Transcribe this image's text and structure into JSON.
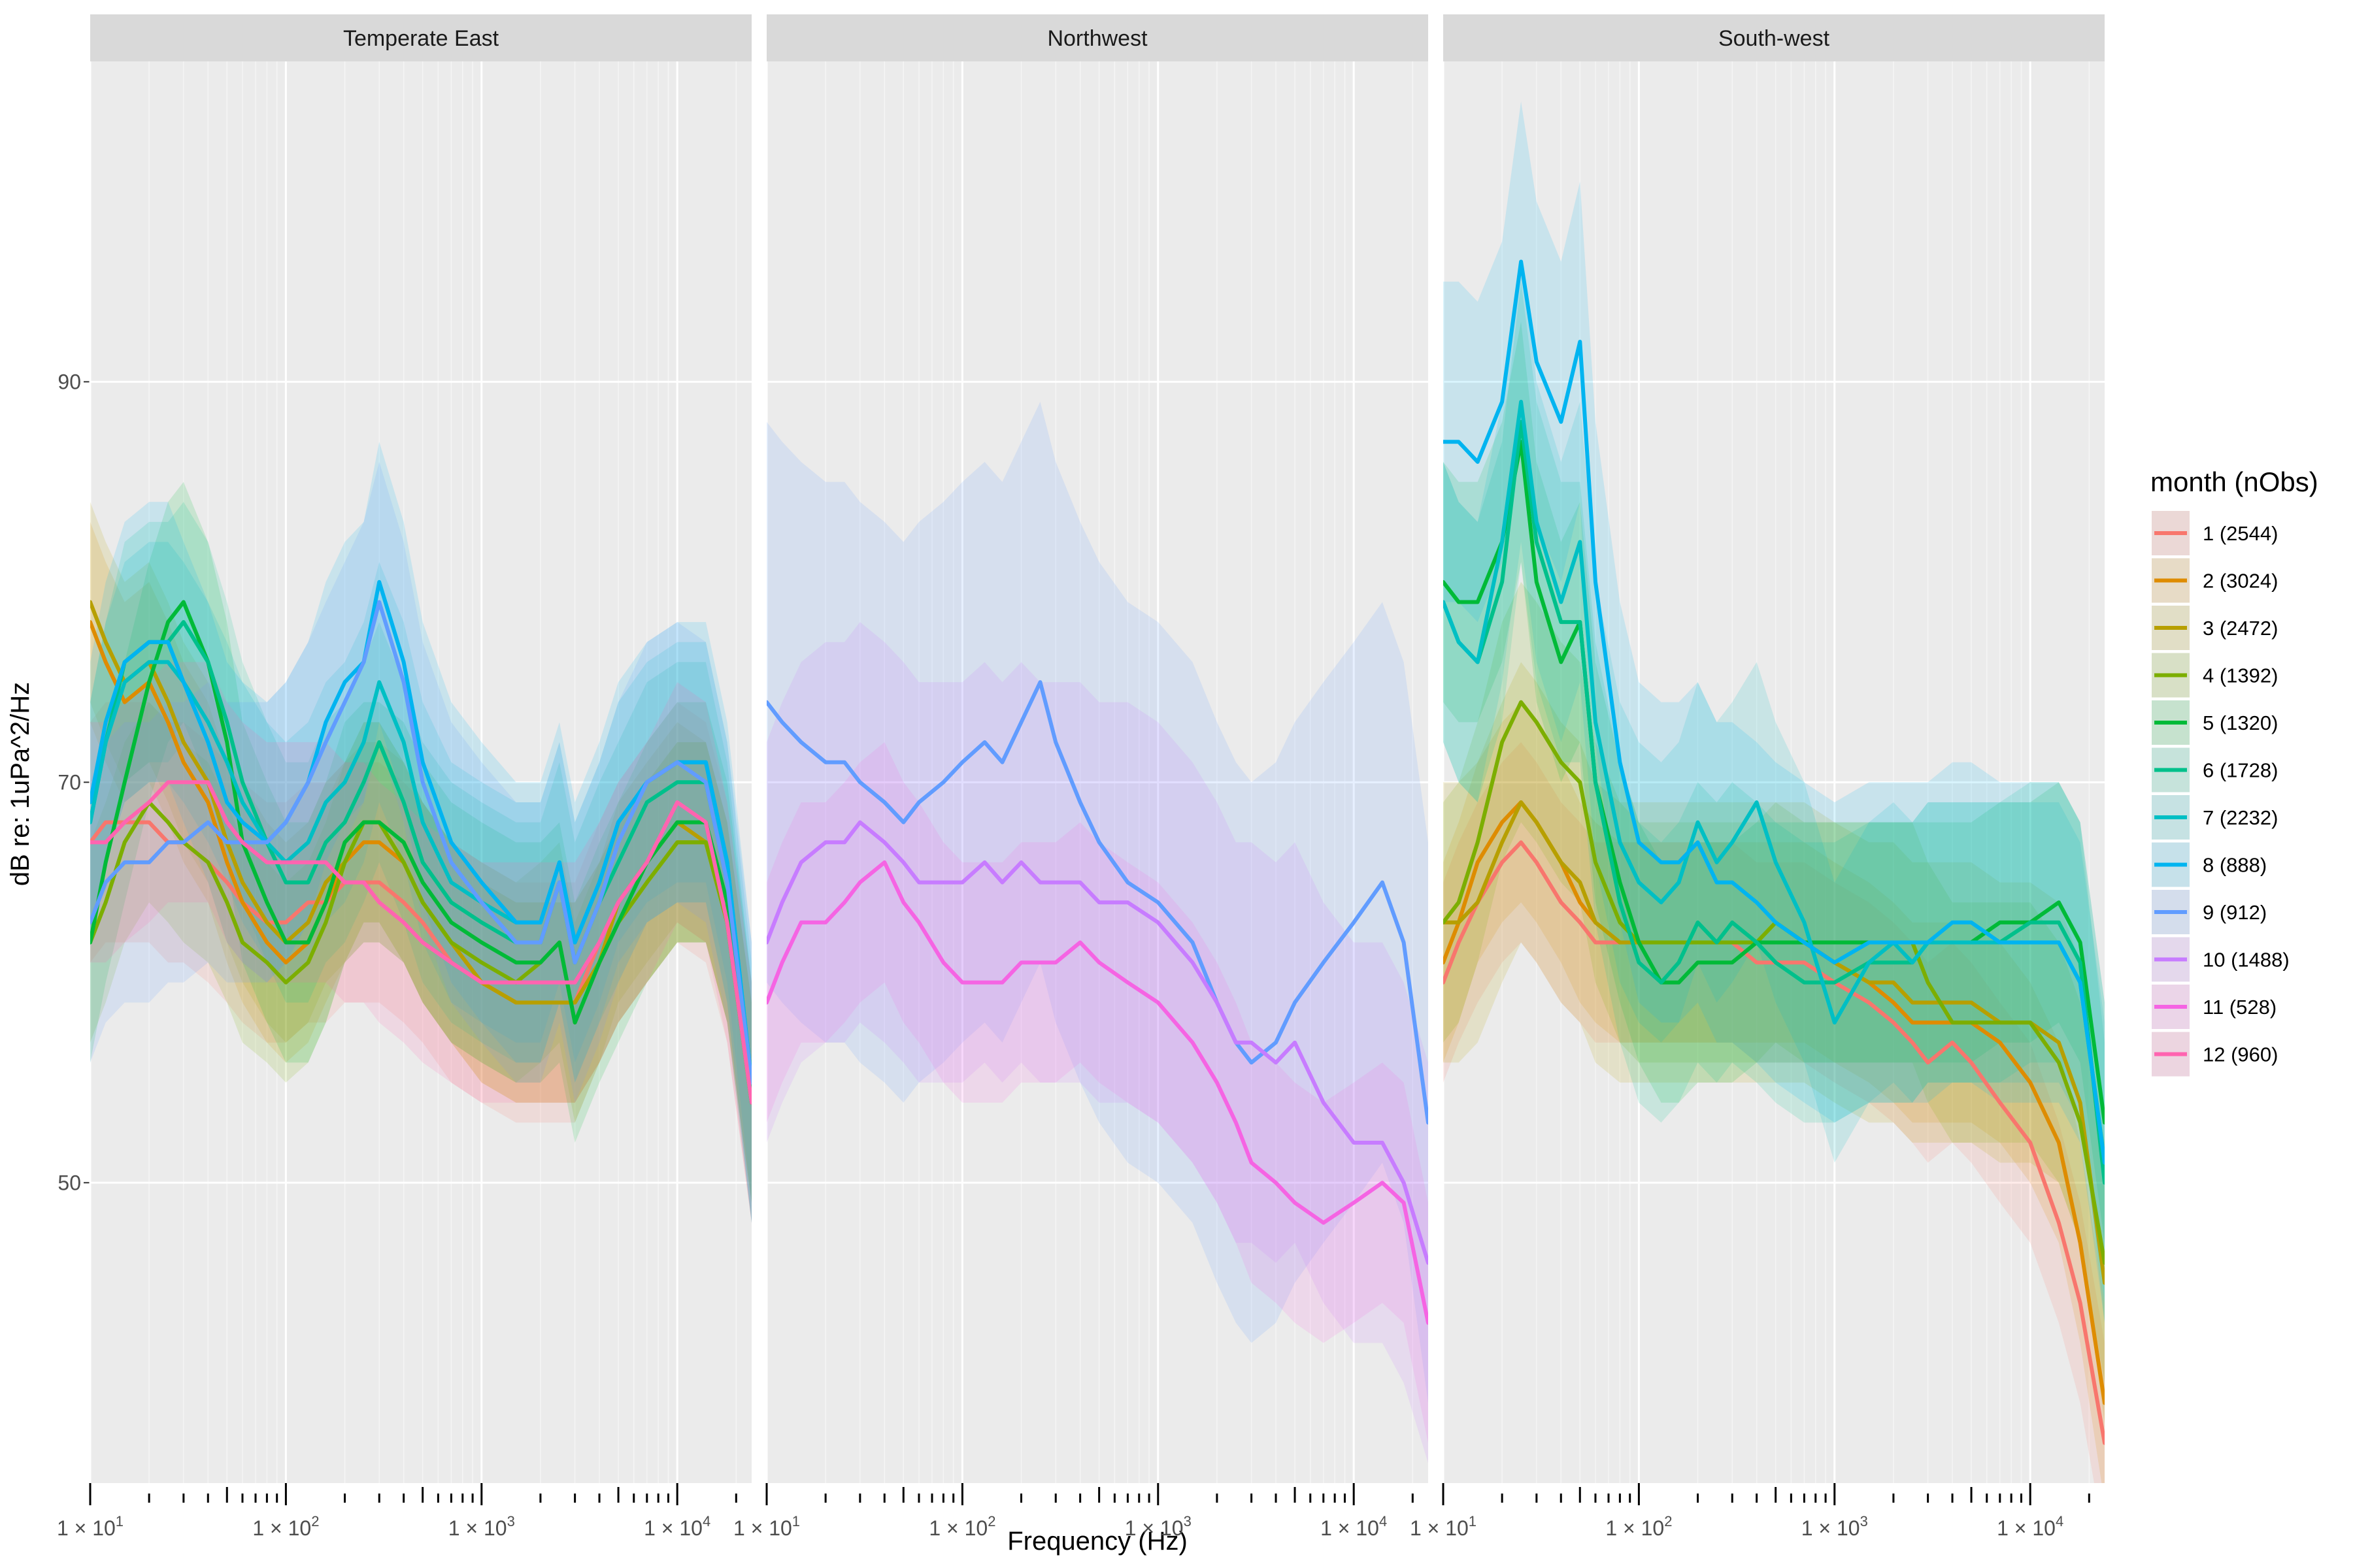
{
  "chart_data": {
    "type": "line",
    "xlabel": "Frequency (Hz)",
    "ylabel": "dB re: 1uPa^2/Hz",
    "x_scale": "log10",
    "xlim": [
      10,
      24000
    ],
    "ylim": [
      35,
      106
    ],
    "y_ticks": [
      50,
      70,
      90
    ],
    "x_tick_labels": [
      {
        "value": 10,
        "base": "1 × 10",
        "exp": "1"
      },
      {
        "value": 100,
        "base": "1 × 10",
        "exp": "2"
      },
      {
        "value": 1000,
        "base": "1 × 10",
        "exp": "3"
      },
      {
        "value": 10000,
        "base": "1 × 10",
        "exp": "4"
      }
    ],
    "grid": true,
    "legend": {
      "title": "month (nObs)",
      "position": "right",
      "entries": [
        {
          "label": "1 (2544)",
          "color": "#F8766D"
        },
        {
          "label": "2 (3024)",
          "color": "#DE8C00"
        },
        {
          "label": "3 (2472)",
          "color": "#B79F00"
        },
        {
          "label": "4 (1392)",
          "color": "#7CAE00"
        },
        {
          "label": "5 (1320)",
          "color": "#00BA38"
        },
        {
          "label": "6 (1728)",
          "color": "#00C08B"
        },
        {
          "label": "7 (2232)",
          "color": "#00BFC4"
        },
        {
          "label": "8 (888)",
          "color": "#00B4F0"
        },
        {
          "label": "9 (912)",
          "color": "#619CFF"
        },
        {
          "label": "10 (1488)",
          "color": "#C77CFF"
        },
        {
          "label": "11 (528)",
          "color": "#F564E3"
        },
        {
          "label": "12 (960)",
          "color": "#FF64B0"
        }
      ]
    },
    "x": [
      10,
      12,
      15,
      20,
      25,
      30,
      40,
      50,
      60,
      80,
      100,
      130,
      160,
      200,
      250,
      300,
      400,
      500,
      700,
      1000,
      1500,
      2000,
      2500,
      3000,
      4000,
      5000,
      7000,
      10000,
      14000,
      18000,
      24000
    ],
    "panels": [
      {
        "title": "Temperate East",
        "series": [
          {
            "month": 1,
            "values": [
              67,
              68,
              68,
              68,
              67,
              67,
              66,
              65,
              64,
              63,
              63,
              64,
              64,
              65,
              65,
              65,
              64,
              63,
              61,
              60,
              59,
              59,
              59,
              59,
              62,
              64,
              66,
              68,
              67,
              63,
              54
            ],
            "band": 6
          },
          {
            "month": 2,
            "values": [
              78,
              76,
              74,
              75,
              73,
              71,
              69,
              66,
              64,
              62,
              61,
              62,
              64,
              66,
              67,
              67,
              66,
              64,
              62,
              60,
              59,
              59,
              59,
              59,
              61,
              63,
              65,
              67,
              67,
              63,
              54
            ],
            "band": 5
          },
          {
            "month": 3,
            "values": [
              79,
              77,
              75,
              76,
              74,
              72,
              70,
              67,
              65,
              63,
              62,
              63,
              65,
              66,
              68,
              68,
              66,
              64,
              62,
              60,
              59,
              59,
              59,
              59,
              61,
              64,
              66,
              68,
              67,
              63,
              54
            ],
            "band": 5
          },
          {
            "month": 4,
            "values": [
              62,
              64,
              67,
              69,
              68,
              67,
              66,
              64,
              62,
              61,
              60,
              61,
              63,
              66,
              68,
              68,
              66,
              64,
              62,
              61,
              60,
              61,
              62,
              58,
              61,
              63,
              65,
              67,
              67,
              63,
              54
            ],
            "band": 5
          },
          {
            "month": 5,
            "values": [
              62,
              66,
              70,
              75,
              78,
              79,
              76,
              72,
              67,
              64,
              62,
              62,
              64,
              67,
              68,
              68,
              67,
              65,
              63,
              62,
              61,
              61,
              62,
              58,
              61,
              63,
              66,
              68,
              68,
              64,
              54
            ],
            "band": 6
          },
          {
            "month": 6,
            "values": [
              68,
              72,
              76,
              77,
              77,
              78,
              76,
              73,
              70,
              67,
              65,
              65,
              67,
              68,
              70,
              72,
              69,
              66,
              64,
              63,
              62,
              62,
              65,
              61,
              64,
              66,
              69,
              70,
              70,
              65,
              54
            ],
            "band": 6
          },
          {
            "month": 7,
            "values": [
              68,
              72,
              75,
              76,
              76,
              75,
              73,
              71,
              69,
              67,
              66,
              67,
              69,
              70,
              72,
              75,
              72,
              68,
              65,
              64,
              63,
              63,
              66,
              62,
              65,
              68,
              70,
              71,
              71,
              66,
              55
            ],
            "band": 6
          },
          {
            "month": 8,
            "values": [
              69,
              73,
              76,
              77,
              77,
              75,
              72,
              69,
              68,
              67,
              68,
              70,
              73,
              75,
              76,
              80,
              76,
              71,
              67,
              65,
              63,
              63,
              66,
              62,
              65,
              68,
              70,
              71,
              71,
              66,
              55
            ],
            "band": 7
          },
          {
            "month": 9,
            "values": [
              63,
              65,
              66,
              66,
              67,
              67,
              68,
              67,
              67,
              67,
              68,
              70,
              72,
              74,
              76,
              79,
              75,
              70,
              66,
              64,
              62,
              62,
              65,
              61,
              64,
              67,
              70,
              71,
              70,
              65,
              55
            ],
            "band": 7
          },
          {
            "month": 12,
            "values": [
              67,
              67,
              68,
              69,
              70,
              70,
              70,
              68,
              67,
              66,
              66,
              66,
              66,
              65,
              65,
              64,
              63,
              62,
              61,
              60,
              60,
              60,
              60,
              60,
              62,
              64,
              66,
              69,
              68,
              63,
              54
            ],
            "band": 6
          }
        ]
      },
      {
        "title": "Northwest",
        "series": [
          {
            "month": 9,
            "values": [
              74,
              73,
              72,
              71,
              71,
              70,
              69,
              68,
              69,
              70,
              71,
              72,
              71,
              73,
              75,
              72,
              69,
              67,
              65,
              64,
              62,
              59,
              57,
              56,
              57,
              59,
              61,
              63,
              65,
              62,
              53
            ],
            "band": 14
          },
          {
            "month": 10,
            "values": [
              62,
              64,
              66,
              67,
              67,
              68,
              67,
              66,
              65,
              65,
              65,
              66,
              65,
              66,
              65,
              65,
              65,
              64,
              64,
              63,
              61,
              59,
              57,
              57,
              56,
              57,
              54,
              52,
              52,
              50,
              46
            ],
            "band": 10
          },
          {
            "month": 11,
            "values": [
              59,
              61,
              63,
              63,
              64,
              65,
              66,
              64,
              63,
              61,
              60,
              60,
              60,
              61,
              61,
              61,
              62,
              61,
              60,
              59,
              57,
              55,
              53,
              51,
              50,
              49,
              48,
              49,
              50,
              49,
              43
            ],
            "band": 6
          }
        ]
      },
      {
        "title": "South-west",
        "series": [
          {
            "month": 1,
            "values": [
              60,
              62,
              64,
              66,
              67,
              66,
              64,
              63,
              62,
              62,
              62,
              62,
              62,
              62,
              62,
              62,
              61,
              61,
              61,
              60,
              59,
              58,
              57,
              56,
              57,
              56,
              54,
              52,
              48,
              44,
              37
            ],
            "band": 5
          },
          {
            "month": 2,
            "values": [
              61,
              63,
              66,
              68,
              69,
              68,
              66,
              64,
              63,
              62,
              62,
              62,
              62,
              62,
              62,
              62,
              62,
              62,
              62,
              61,
              60,
              59,
              58,
              58,
              58,
              58,
              57,
              55,
              52,
              47,
              39
            ],
            "band": 5
          },
          {
            "month": 3,
            "values": [
              63,
              63,
              64,
              67,
              69,
              68,
              66,
              65,
              63,
              62,
              62,
              62,
              62,
              62,
              62,
              62,
              62,
              62,
              62,
              61,
              60,
              60,
              59,
              59,
              59,
              59,
              58,
              58,
              57,
              54,
              45
            ],
            "band": 7
          },
          {
            "month": 4,
            "values": [
              63,
              64,
              67,
              72,
              74,
              73,
              71,
              70,
              66,
              63,
              62,
              62,
              62,
              62,
              62,
              62,
              62,
              63,
              62,
              62,
              62,
              62,
              62,
              60,
              58,
              58,
              58,
              58,
              56,
              53,
              46
            ],
            "band": 6
          },
          {
            "month": 5,
            "values": [
              80,
              79,
              79,
              82,
              87,
              80,
              76,
              78,
              70,
              65,
              62,
              60,
              60,
              61,
              61,
              61,
              62,
              62,
              62,
              62,
              62,
              62,
              62,
              62,
              62,
              62,
              63,
              63,
              64,
              62,
              53
            ],
            "band": 6
          },
          {
            "month": 6,
            "values": [
              79,
              77,
              76,
              80,
              88,
              82,
              78,
              78,
              70,
              64,
              61,
              60,
              61,
              63,
              62,
              63,
              62,
              61,
              60,
              60,
              61,
              61,
              61,
              62,
              62,
              62,
              62,
              63,
              63,
              61,
              50
            ],
            "band": 7
          },
          {
            "month": 7,
            "values": [
              79,
              77,
              76,
              82,
              89,
              83,
              79,
              82,
              73,
              67,
              65,
              64,
              65,
              68,
              66,
              67,
              69,
              66,
              63,
              58,
              61,
              62,
              61,
              62,
              62,
              62,
              62,
              62,
              62,
              60,
              51
            ],
            "band": 7
          },
          {
            "month": 8,
            "values": [
              87,
              87,
              86,
              89,
              96,
              91,
              88,
              92,
              80,
              71,
              67,
              66,
              66,
              67,
              65,
              65,
              64,
              63,
              62,
              61,
              62,
              62,
              62,
              62,
              63,
              63,
              62,
              62,
              62,
              60,
              51
            ],
            "band": 8
          }
        ]
      }
    ]
  }
}
